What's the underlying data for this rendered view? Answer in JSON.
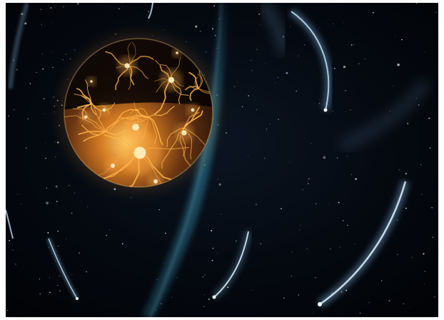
{
  "scene": {
    "subject": "molten-planet",
    "elements": [
      "planet",
      "comets",
      "stars",
      "light-beam"
    ],
    "colors": {
      "background": "#03050a",
      "planet_glow": "#ffd27a",
      "planet_crack": "#ff8a1a",
      "comet_tail": "#9fd8ff",
      "beam": "#3fa6c8",
      "star": "#ffffff"
    }
  }
}
